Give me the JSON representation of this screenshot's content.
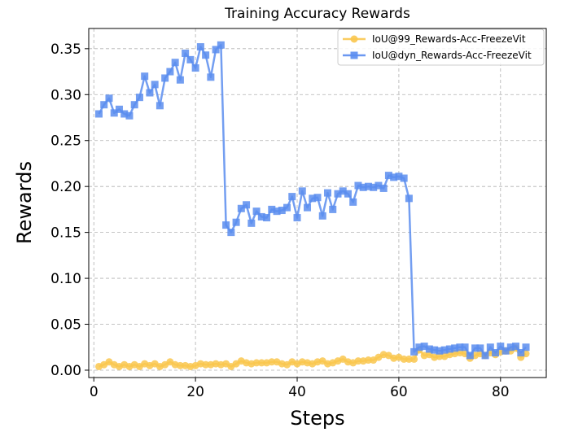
{
  "chart_data": {
    "type": "line",
    "title": "Training Accuracy Rewards",
    "xlabel": "Steps",
    "ylabel": "Rewards",
    "xlim": [
      -1,
      89
    ],
    "ylim": [
      -0.008,
      0.372
    ],
    "xticks": [
      0,
      20,
      40,
      60,
      80
    ],
    "yticks": [
      0.0,
      0.05,
      0.1,
      0.15,
      0.2,
      0.25,
      0.3,
      0.35
    ],
    "grid": true,
    "legend_position": "top-right",
    "series": [
      {
        "name": "IoU@99_Rewards-Acc-FreezeVit",
        "color": "#f9c74f",
        "marker": "circle",
        "x": [
          1,
          2,
          3,
          4,
          5,
          6,
          7,
          8,
          9,
          10,
          11,
          12,
          13,
          14,
          15,
          16,
          17,
          18,
          19,
          20,
          21,
          22,
          23,
          24,
          25,
          26,
          27,
          28,
          29,
          30,
          31,
          32,
          33,
          34,
          35,
          36,
          37,
          38,
          39,
          40,
          41,
          42,
          43,
          44,
          45,
          46,
          47,
          48,
          49,
          50,
          51,
          52,
          53,
          54,
          55,
          56,
          57,
          58,
          59,
          60,
          61,
          62,
          63,
          64,
          65,
          66,
          67,
          68,
          69,
          70,
          71,
          72,
          73,
          74,
          75,
          76,
          77,
          78,
          79,
          80,
          81,
          82,
          83,
          84,
          85
        ],
        "values": [
          0.004,
          0.006,
          0.009,
          0.006,
          0.004,
          0.006,
          0.004,
          0.006,
          0.004,
          0.007,
          0.005,
          0.007,
          0.004,
          0.006,
          0.009,
          0.006,
          0.005,
          0.005,
          0.004,
          0.005,
          0.007,
          0.006,
          0.006,
          0.007,
          0.006,
          0.007,
          0.004,
          0.007,
          0.01,
          0.008,
          0.007,
          0.008,
          0.008,
          0.008,
          0.009,
          0.009,
          0.007,
          0.006,
          0.009,
          0.007,
          0.009,
          0.008,
          0.007,
          0.009,
          0.01,
          0.007,
          0.008,
          0.01,
          0.012,
          0.009,
          0.008,
          0.01,
          0.01,
          0.011,
          0.011,
          0.014,
          0.017,
          0.016,
          0.013,
          0.014,
          0.012,
          0.012,
          0.012,
          0.022,
          0.016,
          0.017,
          0.014,
          0.015,
          0.015,
          0.017,
          0.018,
          0.019,
          0.018,
          0.013,
          0.016,
          0.018,
          0.016,
          0.019,
          0.017,
          0.02,
          0.021,
          0.021,
          0.024,
          0.014,
          0.018
        ]
      },
      {
        "name": "IoU@dyn_Rewards-Acc-FreezeVit",
        "color": "#5b8def",
        "marker": "square",
        "x": [
          1,
          2,
          3,
          4,
          5,
          6,
          7,
          8,
          9,
          10,
          11,
          12,
          13,
          14,
          15,
          16,
          17,
          18,
          19,
          20,
          21,
          22,
          23,
          24,
          25,
          26,
          27,
          28,
          29,
          30,
          31,
          32,
          33,
          34,
          35,
          36,
          37,
          38,
          39,
          40,
          41,
          42,
          43,
          44,
          45,
          46,
          47,
          48,
          49,
          50,
          51,
          52,
          53,
          54,
          55,
          56,
          57,
          58,
          59,
          60,
          61,
          62,
          63,
          64,
          65,
          66,
          67,
          68,
          69,
          70,
          71,
          72,
          73,
          74,
          75,
          76,
          77,
          78,
          79,
          80,
          81,
          82,
          83,
          84,
          85
        ],
        "values": [
          0.279,
          0.289,
          0.296,
          0.28,
          0.284,
          0.279,
          0.277,
          0.289,
          0.297,
          0.32,
          0.302,
          0.311,
          0.288,
          0.318,
          0.325,
          0.335,
          0.316,
          0.345,
          0.338,
          0.329,
          0.352,
          0.343,
          0.319,
          0.349,
          0.354,
          0.158,
          0.15,
          0.161,
          0.176,
          0.18,
          0.16,
          0.173,
          0.167,
          0.166,
          0.175,
          0.173,
          0.174,
          0.177,
          0.189,
          0.166,
          0.195,
          0.177,
          0.187,
          0.188,
          0.168,
          0.193,
          0.175,
          0.192,
          0.195,
          0.192,
          0.183,
          0.201,
          0.199,
          0.2,
          0.199,
          0.201,
          0.198,
          0.212,
          0.21,
          0.211,
          0.209,
          0.187,
          0.02,
          0.025,
          0.026,
          0.023,
          0.022,
          0.021,
          0.022,
          0.023,
          0.024,
          0.025,
          0.025,
          0.016,
          0.024,
          0.024,
          0.016,
          0.025,
          0.019,
          0.026,
          0.021,
          0.025,
          0.026,
          0.019,
          0.025
        ]
      }
    ]
  }
}
